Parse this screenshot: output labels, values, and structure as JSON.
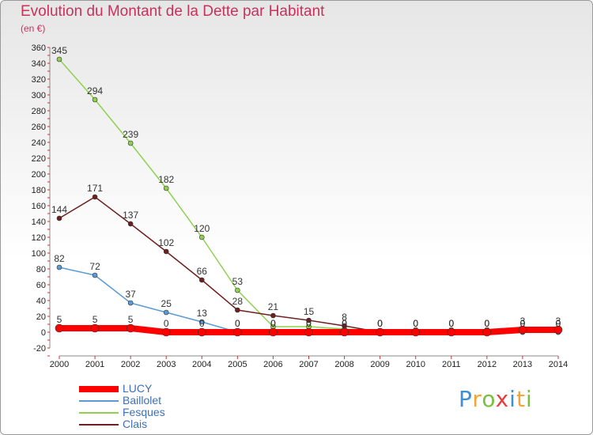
{
  "header": {
    "title": "Evolution du Montant de la Dette par Habitant",
    "unit": "(en €)"
  },
  "logo": {
    "text": "Proxiti"
  },
  "colors": {
    "LUCY": "#ff0000",
    "Baillolet": "#5b9bd5",
    "Fesques": "#8fd14f",
    "Clais": "#6e1f1f"
  },
  "chart_data": {
    "type": "line",
    "title": "Evolution du Montant de la Dette par Habitant",
    "subtitle": "(en €)",
    "xlabel": "",
    "ylabel": "",
    "x": [
      "2000",
      "2001",
      "2002",
      "2003",
      "2004",
      "2005",
      "2006",
      "2007",
      "2008",
      "2009",
      "2010",
      "2011",
      "2012",
      "2013",
      "2014"
    ],
    "ylim": [
      -20,
      360
    ],
    "yticks": [
      -20,
      0,
      20,
      40,
      60,
      80,
      100,
      120,
      140,
      160,
      180,
      200,
      220,
      240,
      260,
      280,
      300,
      320,
      340,
      360
    ],
    "grid": false,
    "legend_position": "bottom-left",
    "series": [
      {
        "name": "LUCY",
        "color": "#ff0000",
        "values": [
          5,
          5,
          5,
          0,
          0,
          0,
          0,
          0,
          0,
          0,
          0,
          0,
          0,
          3,
          3
        ],
        "labels": [
          "5",
          "5",
          "5",
          "0",
          "0",
          "0",
          "0",
          "0",
          "0",
          "0",
          "0",
          "0",
          "0",
          "3",
          "3"
        ]
      },
      {
        "name": "Baillolet",
        "color": "#5b9bd5",
        "values": [
          82,
          72,
          37,
          25,
          13,
          0,
          0,
          0,
          0,
          0,
          0,
          0,
          0,
          0,
          0
        ],
        "labels": [
          "82",
          "72",
          "37",
          "25",
          "13",
          "0",
          "0",
          "0",
          "0",
          "0",
          "0",
          "0",
          "0",
          "0",
          "0"
        ]
      },
      {
        "name": "Fesques",
        "color": "#8fd14f",
        "values": [
          345,
          294,
          239,
          182,
          120,
          53,
          7,
          7,
          4,
          2,
          3,
          3,
          3,
          2,
          2
        ],
        "labels": [
          "345",
          "294",
          "239",
          "182",
          "120",
          "53",
          "",
          "",
          "",
          "",
          "",
          "",
          "",
          "",
          ""
        ]
      },
      {
        "name": "Clais",
        "color": "#6e1f1f",
        "values": [
          144,
          171,
          137,
          102,
          66,
          28,
          21,
          15,
          8,
          0,
          0,
          0,
          0,
          0,
          0
        ],
        "labels": [
          "144",
          "171",
          "137",
          "102",
          "66",
          "28",
          "21",
          "15",
          "8",
          "0",
          "0",
          "0",
          "0",
          "0",
          "0"
        ]
      }
    ]
  }
}
